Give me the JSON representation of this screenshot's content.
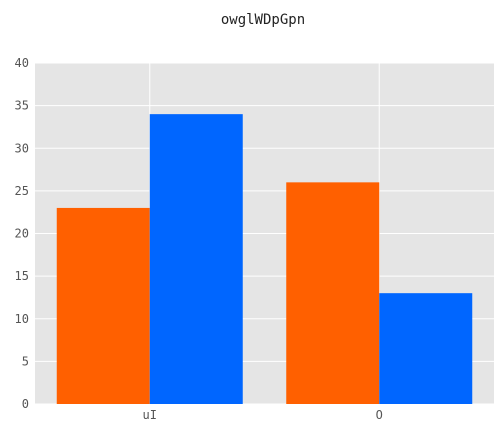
{
  "chart_data": {
    "type": "bar",
    "title": "owglWDpGpn",
    "xlabel": "",
    "ylabel": "",
    "categories": [
      "uI",
      "O"
    ],
    "series": [
      {
        "values": [
          23,
          26
        ],
        "color": "#ff6000"
      },
      {
        "values": [
          34,
          13
        ],
        "color": "#0066ff"
      }
    ],
    "ylim": [
      0,
      40
    ],
    "yticks": [
      0,
      5,
      10,
      15,
      20,
      25,
      30,
      35,
      40
    ],
    "grid": true,
    "legend": "none",
    "plot_background": "#e5e5e5",
    "grid_color": "#ffffff"
  }
}
